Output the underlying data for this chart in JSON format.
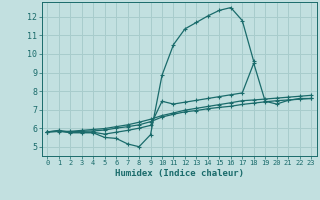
{
  "xlabel": "Humidex (Indice chaleur)",
  "background_color": "#c2e0e0",
  "grid_color": "#a8cccc",
  "line_color": "#1a6b6b",
  "xlim": [
    -0.5,
    23.5
  ],
  "ylim": [
    4.5,
    12.8
  ],
  "xticks": [
    0,
    1,
    2,
    3,
    4,
    5,
    6,
    7,
    8,
    9,
    10,
    11,
    12,
    13,
    14,
    15,
    16,
    17,
    18,
    19,
    20,
    21,
    22,
    23
  ],
  "yticks": [
    5,
    6,
    7,
    8,
    9,
    10,
    11,
    12
  ],
  "lines": [
    {
      "x": [
        0,
        1,
        2,
        3,
        4,
        5,
        6,
        7,
        8,
        9,
        10,
        11,
        12,
        13,
        14,
        15,
        16,
        17,
        18
      ],
      "y": [
        5.8,
        5.85,
        5.75,
        5.75,
        5.75,
        5.5,
        5.45,
        5.15,
        5.0,
        5.65,
        8.85,
        10.5,
        11.35,
        11.7,
        12.05,
        12.35,
        12.5,
        11.8,
        9.6
      ]
    },
    {
      "x": [
        0,
        1,
        2,
        3,
        4,
        5,
        6,
        7,
        8,
        9,
        10,
        11,
        12,
        13,
        14,
        15,
        16,
        17,
        18,
        19,
        20,
        21,
        22,
        23
      ],
      "y": [
        5.8,
        5.88,
        5.78,
        5.78,
        5.78,
        5.68,
        5.78,
        5.88,
        6.0,
        6.15,
        7.45,
        7.3,
        7.4,
        7.5,
        7.6,
        7.7,
        7.8,
        7.9,
        9.5,
        7.45,
        7.3,
        7.5,
        7.6,
        7.6
      ]
    },
    {
      "x": [
        0,
        1,
        2,
        3,
        4,
        5,
        6,
        7,
        8,
        9,
        10,
        11,
        12,
        13,
        14,
        15,
        16,
        17,
        18,
        19,
        20,
        21,
        22,
        23
      ],
      "y": [
        5.8,
        5.82,
        5.8,
        5.83,
        5.85,
        5.9,
        6.0,
        6.08,
        6.18,
        6.35,
        6.6,
        6.75,
        6.88,
        6.95,
        7.05,
        7.12,
        7.18,
        7.28,
        7.35,
        7.42,
        7.48,
        7.52,
        7.56,
        7.6
      ]
    },
    {
      "x": [
        0,
        1,
        2,
        3,
        4,
        5,
        6,
        7,
        8,
        9,
        10,
        11,
        12,
        13,
        14,
        15,
        16,
        17,
        18,
        19,
        20,
        21,
        22,
        23
      ],
      "y": [
        5.8,
        5.83,
        5.83,
        5.88,
        5.93,
        5.98,
        6.08,
        6.18,
        6.32,
        6.48,
        6.68,
        6.82,
        6.97,
        7.07,
        7.17,
        7.27,
        7.37,
        7.48,
        7.52,
        7.57,
        7.62,
        7.67,
        7.72,
        7.77
      ]
    }
  ]
}
